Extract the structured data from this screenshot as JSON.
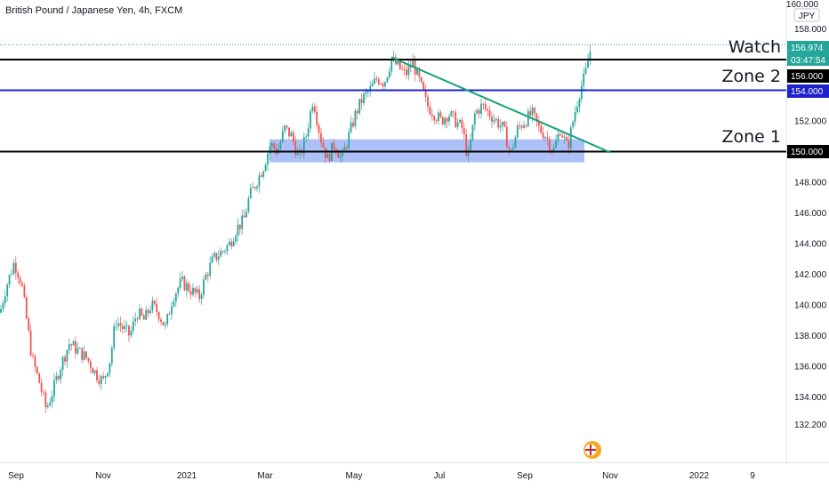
{
  "header": {
    "title": "British Pound / Japanese Yen, 4h, FXCM"
  },
  "axis": {
    "unit": "JPY",
    "top_hint": "160.000"
  },
  "price_labels": [
    {
      "text": "156.974",
      "bg": "#26a69a"
    },
    {
      "text": "03:47:54",
      "bg": "#26a69a"
    },
    {
      "text": "156.000",
      "bg": "#000000"
    },
    {
      "text": "154.000",
      "bg": "#1e22cc"
    },
    {
      "text": "150.000",
      "bg": "#000000"
    }
  ],
  "annotations": {
    "watch": "Watch",
    "zone2": "Zone 2",
    "zone1": "Zone 1"
  },
  "colors": {
    "up": "#26a69a",
    "down": "#ef5350",
    "zone_fill": "#6b8cf2",
    "blue_line": "#1e22cc",
    "trend": "#15a37a"
  },
  "chart_data": {
    "type": "candlestick",
    "title": "British Pound / Japanese Yen, 4h, FXCM",
    "ylim": [
      131.5,
      160.2
    ],
    "yticks": [
      "132.200",
      "134.000",
      "136.000",
      "138.000",
      "140.000",
      "142.000",
      "144.000",
      "146.000",
      "148.000",
      "150.000",
      "152.000",
      "154.000",
      "156.000",
      "158.000"
    ],
    "xticks": [
      "Sep",
      "Nov",
      "2021",
      "Mar",
      "May",
      "Jul",
      "Sep",
      "Nov",
      "2022",
      "9"
    ],
    "horizontal_levels": [
      156.0,
      154.0,
      150.0
    ],
    "support_zone": [
      149.3,
      150.8
    ],
    "trendline": [
      [
        156.15,
        "mid-May 2021"
      ],
      [
        149.95,
        "late Oct 2021"
      ]
    ],
    "last_price": 156.974,
    "path": [
      [
        0,
        139.5
      ],
      [
        6,
        141.0
      ],
      [
        16,
        142.8
      ],
      [
        24,
        141.5
      ],
      [
        30,
        139.0
      ],
      [
        36,
        136.5
      ],
      [
        44,
        135.0
      ],
      [
        52,
        133.2
      ],
      [
        60,
        134.5
      ],
      [
        68,
        136.0
      ],
      [
        78,
        137.5
      ],
      [
        88,
        137.0
      ],
      [
        98,
        136.5
      ],
      [
        108,
        135.5
      ],
      [
        116,
        135.0
      ],
      [
        124,
        136.5
      ],
      [
        130,
        139.0
      ],
      [
        138,
        138.5
      ],
      [
        146,
        138.0
      ],
      [
        154,
        139.5
      ],
      [
        162,
        139.0
      ],
      [
        170,
        140.0
      ],
      [
        178,
        139.5
      ],
      [
        186,
        138.5
      ],
      [
        194,
        140.5
      ],
      [
        204,
        141.5
      ],
      [
        214,
        141.0
      ],
      [
        224,
        140.5
      ],
      [
        232,
        142.0
      ],
      [
        240,
        143.0
      ],
      [
        250,
        143.5
      ],
      [
        258,
        144.0
      ],
      [
        266,
        145.0
      ],
      [
        274,
        145.5
      ],
      [
        280,
        147.0
      ],
      [
        288,
        148.0
      ],
      [
        296,
        149.0
      ],
      [
        304,
        150.5
      ],
      [
        312,
        150.0
      ],
      [
        320,
        151.5
      ],
      [
        328,
        151.0
      ],
      [
        336,
        149.5
      ],
      [
        344,
        151.0
      ],
      [
        352,
        153.5
      ],
      [
        360,
        151.0
      ],
      [
        368,
        149.5
      ],
      [
        376,
        150.5
      ],
      [
        384,
        149.5
      ],
      [
        392,
        151.0
      ],
      [
        400,
        152.5
      ],
      [
        408,
        153.5
      ],
      [
        416,
        154.0
      ],
      [
        424,
        154.8
      ],
      [
        432,
        154.5
      ],
      [
        440,
        156.0
      ],
      [
        448,
        155.5
      ],
      [
        456,
        155.0
      ],
      [
        464,
        155.8
      ],
      [
        472,
        154.5
      ],
      [
        480,
        153.0
      ],
      [
        488,
        152.5
      ],
      [
        496,
        152.0
      ],
      [
        504,
        152.5
      ],
      [
        512,
        152.0
      ],
      [
        520,
        151.5
      ],
      [
        526,
        149.5
      ],
      [
        534,
        152.5
      ],
      [
        542,
        153.0
      ],
      [
        550,
        152.5
      ],
      [
        558,
        152.0
      ],
      [
        566,
        151.5
      ],
      [
        574,
        149.8
      ],
      [
        582,
        151.5
      ],
      [
        590,
        152.0
      ],
      [
        598,
        152.5
      ],
      [
        606,
        151.5
      ],
      [
        614,
        151.0
      ],
      [
        622,
        150.0
      ],
      [
        630,
        151.5
      ],
      [
        638,
        150.2
      ],
      [
        646,
        152.5
      ],
      [
        652,
        154.0
      ],
      [
        658,
        155.0
      ],
      [
        662,
        156.2
      ],
      [
        665,
        156.97
      ]
    ]
  }
}
